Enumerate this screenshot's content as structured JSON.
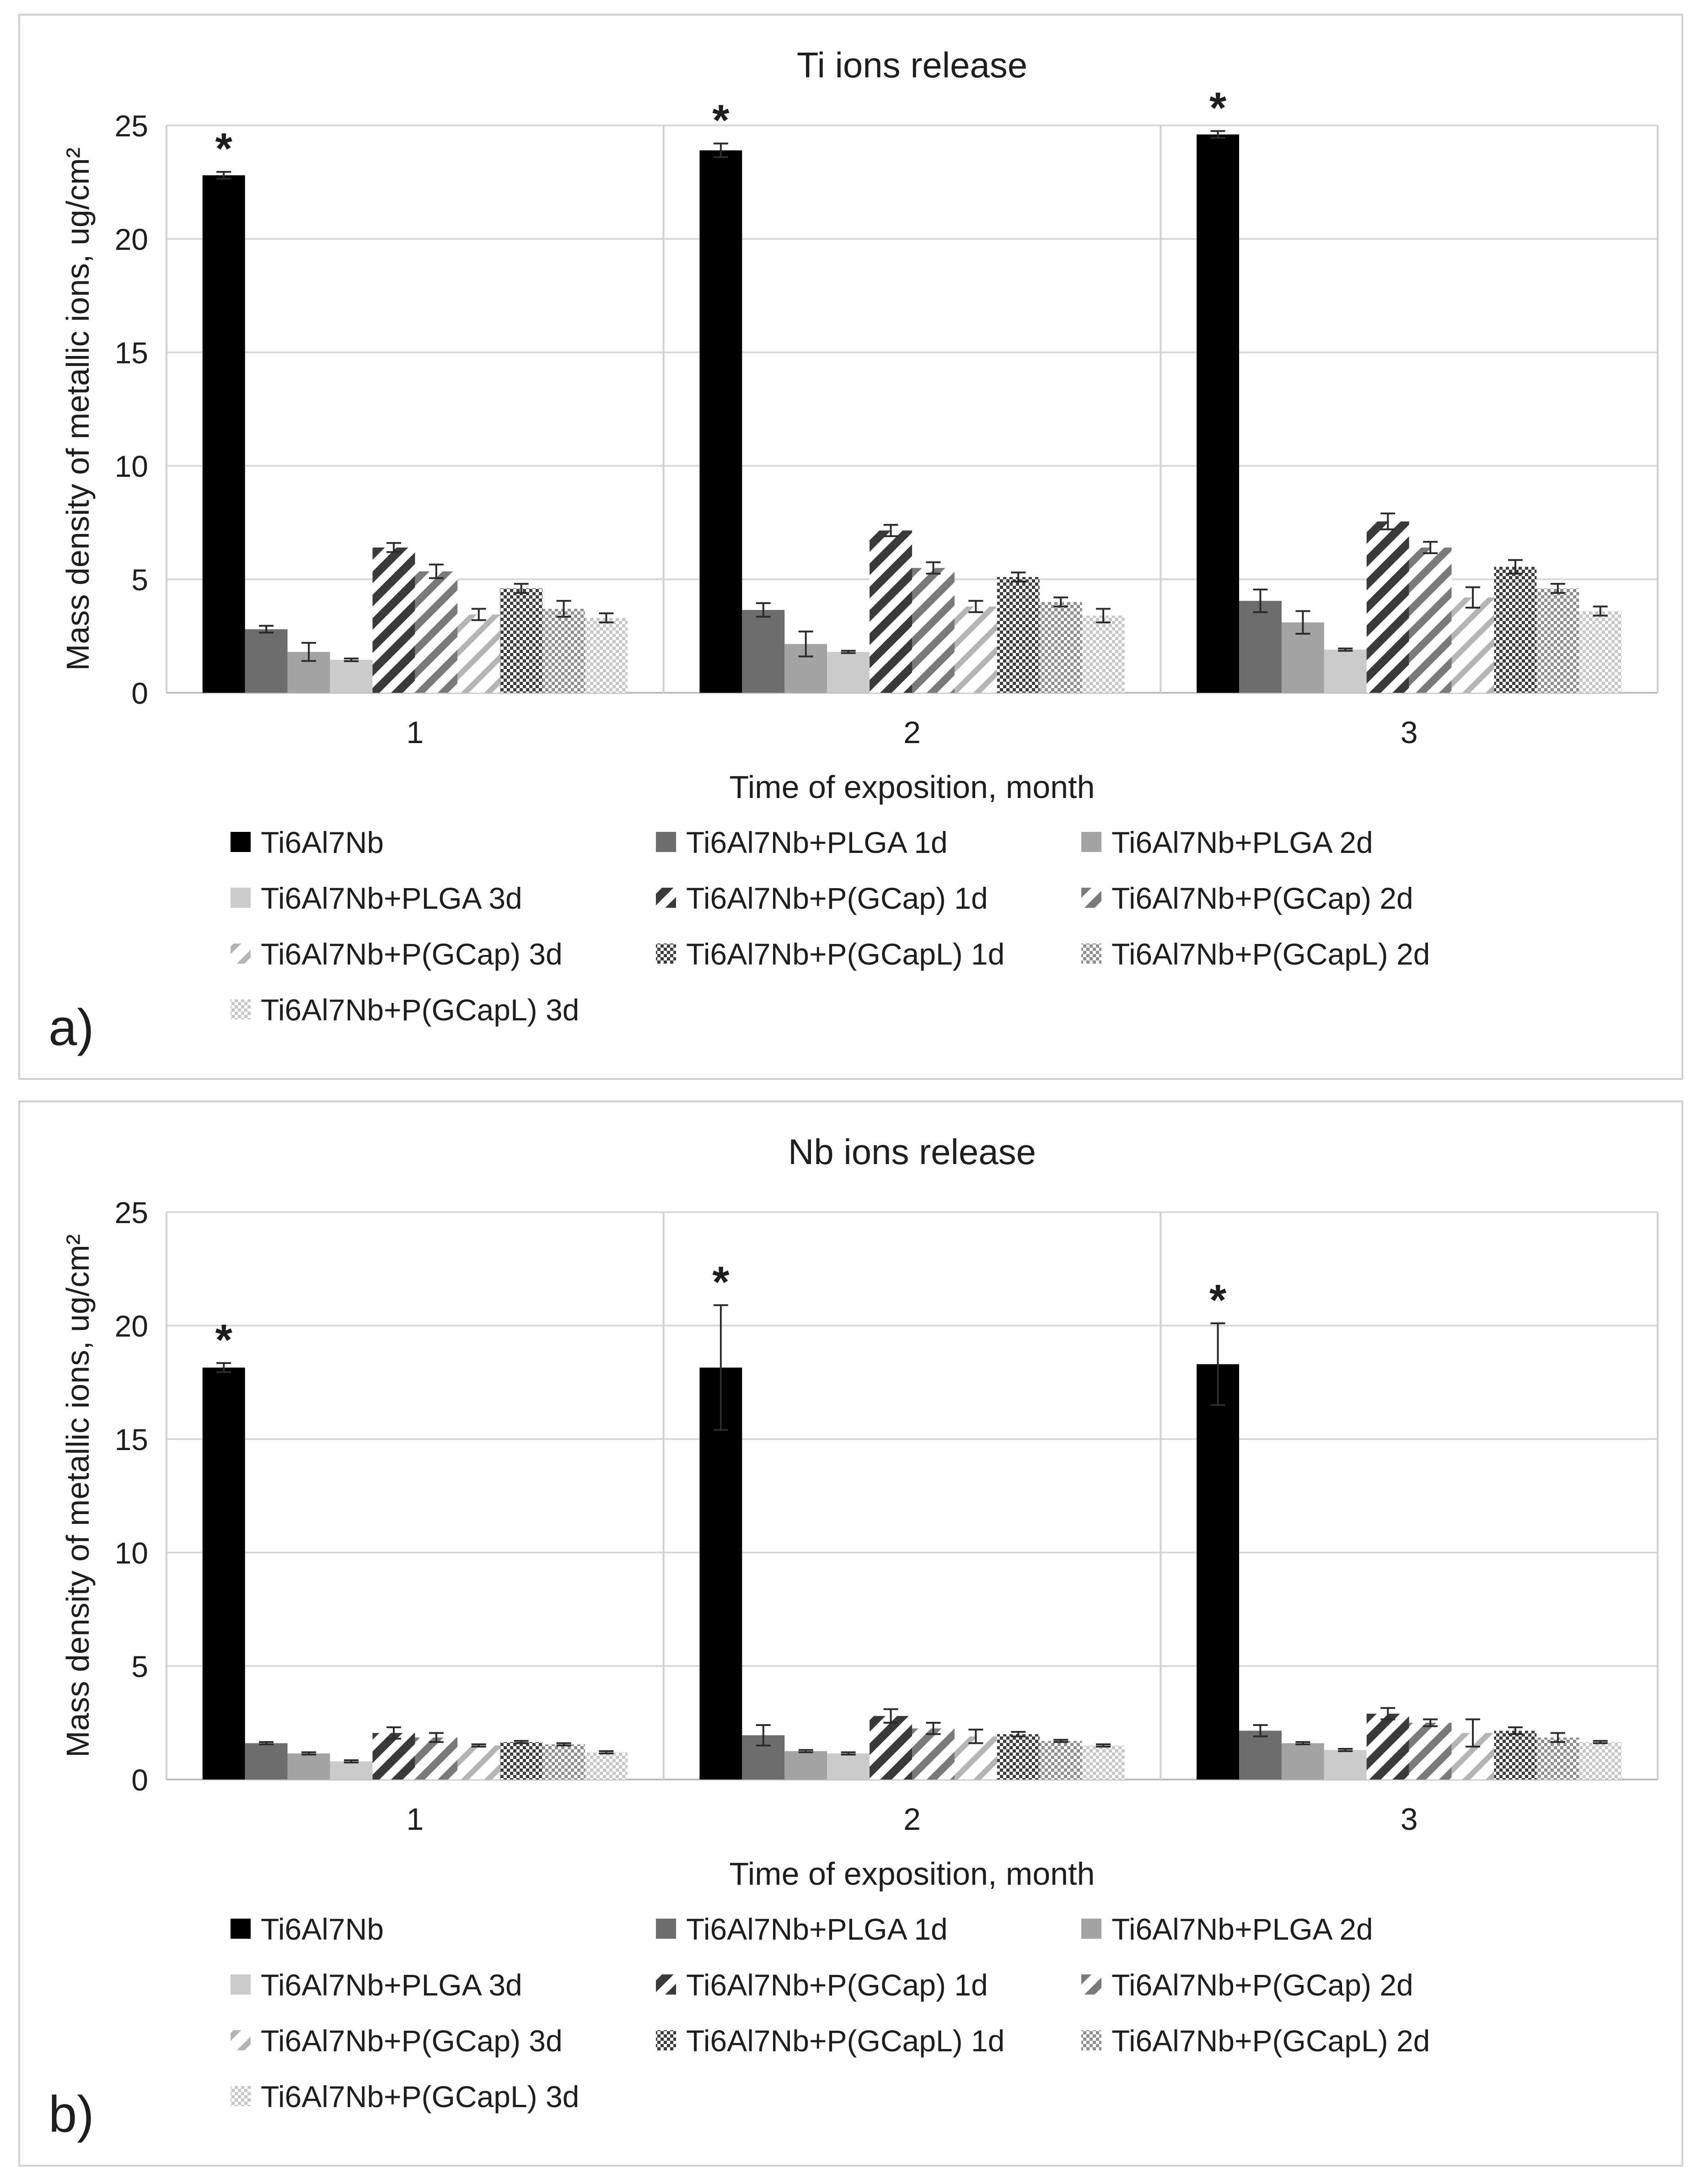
{
  "legend": [
    {
      "label": "Ti6Al7Nb",
      "fill": "#000000",
      "pattern": "solid"
    },
    {
      "label": "Ti6Al7Nb+PLGA 1d",
      "fill": "#6d6d6d",
      "pattern": "solid"
    },
    {
      "label": "Ti6Al7Nb+PLGA 2d",
      "fill": "#a3a3a3",
      "pattern": "solid"
    },
    {
      "label": "Ti6Al7Nb+PLGA 3d",
      "fill": "#cbcbcb",
      "pattern": "solid"
    },
    {
      "label": "Ti6Al7Nb+P(GCap) 1d",
      "fill": "#555555",
      "pattern": "diag-dark"
    },
    {
      "label": "Ti6Al7Nb+P(GCap) 2d",
      "fill": "#8a8a8a",
      "pattern": "diag-mid"
    },
    {
      "label": "Ti6Al7Nb+P(GCap) 3d",
      "fill": "#c2c2c2",
      "pattern": "diag-light"
    },
    {
      "label": "Ti6Al7Nb+P(GCapL) 1d",
      "fill": "#555555",
      "pattern": "check-dark"
    },
    {
      "label": "Ti6Al7Nb+P(GCapL) 2d",
      "fill": "#8a8a8a",
      "pattern": "check-mid"
    },
    {
      "label": "Ti6Al7Nb+P(GCapL) 3d",
      "fill": "#c2c2c2",
      "pattern": "check-light"
    }
  ],
  "chart_data": [
    {
      "type": "bar",
      "panel_label": "a)",
      "title": "Ti ions release",
      "xlabel": "Time of exposition, month",
      "ylabel": "Mass density of metallic ions, ug/cm²",
      "ylim": [
        0,
        25
      ],
      "yticks": [
        0,
        5,
        10,
        15,
        20,
        25
      ],
      "categories": [
        "1",
        "2",
        "3"
      ],
      "significance_marker": "*",
      "significant_series": 0,
      "values": [
        [
          22.8,
          2.8,
          1.8,
          1.45,
          6.4,
          5.35,
          3.45,
          4.6,
          3.7,
          3.3
        ],
        [
          23.9,
          3.65,
          2.15,
          1.8,
          7.15,
          5.5,
          3.8,
          5.1,
          4.0,
          3.4
        ],
        [
          24.6,
          4.05,
          3.1,
          1.9,
          7.55,
          6.4,
          4.2,
          5.55,
          4.6,
          3.6
        ]
      ],
      "errors": [
        [
          0.15,
          0.15,
          0.4,
          0.06,
          0.2,
          0.3,
          0.25,
          0.2,
          0.35,
          0.2
        ],
        [
          0.3,
          0.3,
          0.55,
          0.05,
          0.25,
          0.25,
          0.25,
          0.2,
          0.2,
          0.3
        ],
        [
          0.15,
          0.5,
          0.5,
          0.05,
          0.35,
          0.25,
          0.45,
          0.3,
          0.2,
          0.2
        ]
      ]
    },
    {
      "type": "bar",
      "panel_label": "b)",
      "title": "Nb ions release",
      "xlabel": "Time of exposition, month",
      "ylabel": "Mass density of metallic ions, ug/cm²",
      "ylim": [
        0,
        25
      ],
      "yticks": [
        0,
        5,
        10,
        15,
        20,
        25
      ],
      "categories": [
        "1",
        "2",
        "3"
      ],
      "significance_marker": "*",
      "significant_series": 0,
      "values": [
        [
          18.15,
          1.6,
          1.15,
          0.8,
          2.05,
          1.85,
          1.5,
          1.65,
          1.55,
          1.2
        ],
        [
          18.15,
          1.95,
          1.25,
          1.15,
          2.8,
          2.25,
          1.9,
          2.0,
          1.7,
          1.5
        ],
        [
          18.3,
          2.15,
          1.6,
          1.3,
          2.9,
          2.5,
          2.05,
          2.15,
          1.85,
          1.65
        ]
      ],
      "errors": [
        [
          0.2,
          0.05,
          0.05,
          0.05,
          0.25,
          0.2,
          0.05,
          0.05,
          0.05,
          0.05
        ],
        [
          2.75,
          0.45,
          0.05,
          0.05,
          0.3,
          0.25,
          0.3,
          0.1,
          0.05,
          0.05
        ],
        [
          1.8,
          0.25,
          0.05,
          0.05,
          0.25,
          0.15,
          0.6,
          0.15,
          0.2,
          0.05
        ]
      ]
    }
  ]
}
